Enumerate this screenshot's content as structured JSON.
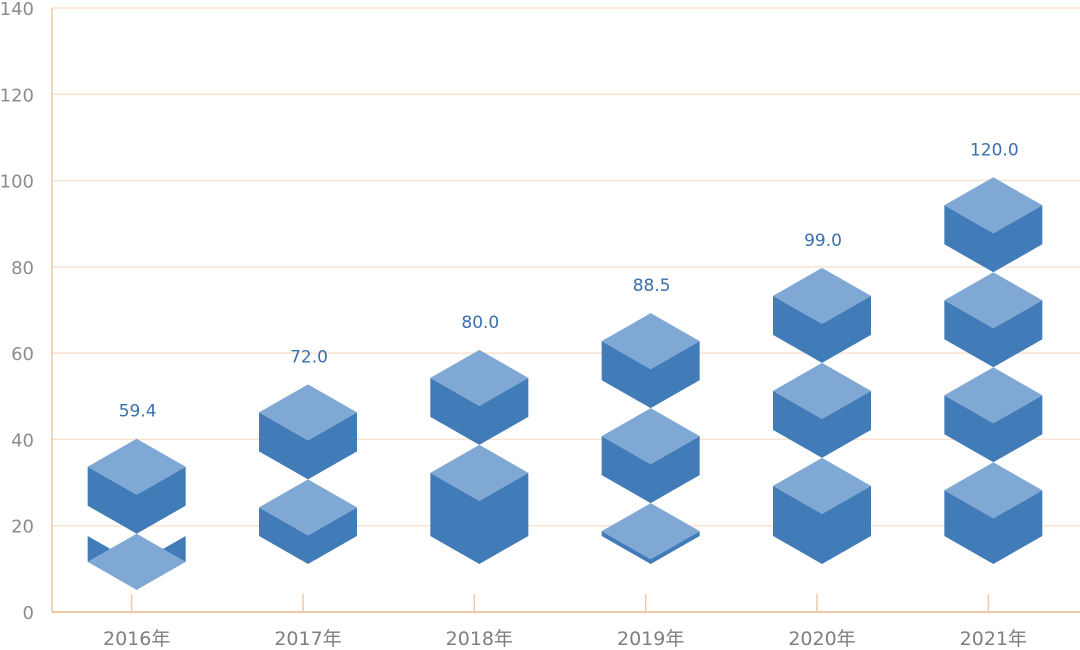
{
  "chart_data": {
    "type": "bar",
    "categories": [
      "2016年",
      "2017年",
      "2018年",
      "2019年",
      "2020年",
      "2021年"
    ],
    "values": [
      59.4,
      72.0,
      80.0,
      88.5,
      99.0,
      120.0
    ],
    "value_labels": [
      "59.4",
      "72.0",
      "80.0",
      "88.5",
      "99.0",
      "120.0"
    ],
    "yticks": [
      "0",
      "20",
      "40",
      "60",
      "80",
      "100",
      "120",
      "140"
    ],
    "ylim": [
      0,
      140
    ],
    "grid": true,
    "style": "stacked isometric blocks",
    "colors": {
      "face": "#427cb8",
      "top": "#7fa8d4",
      "label": "#3a6fae",
      "gridline": "#fbe3cf",
      "axis": "#f0c8a6"
    }
  }
}
